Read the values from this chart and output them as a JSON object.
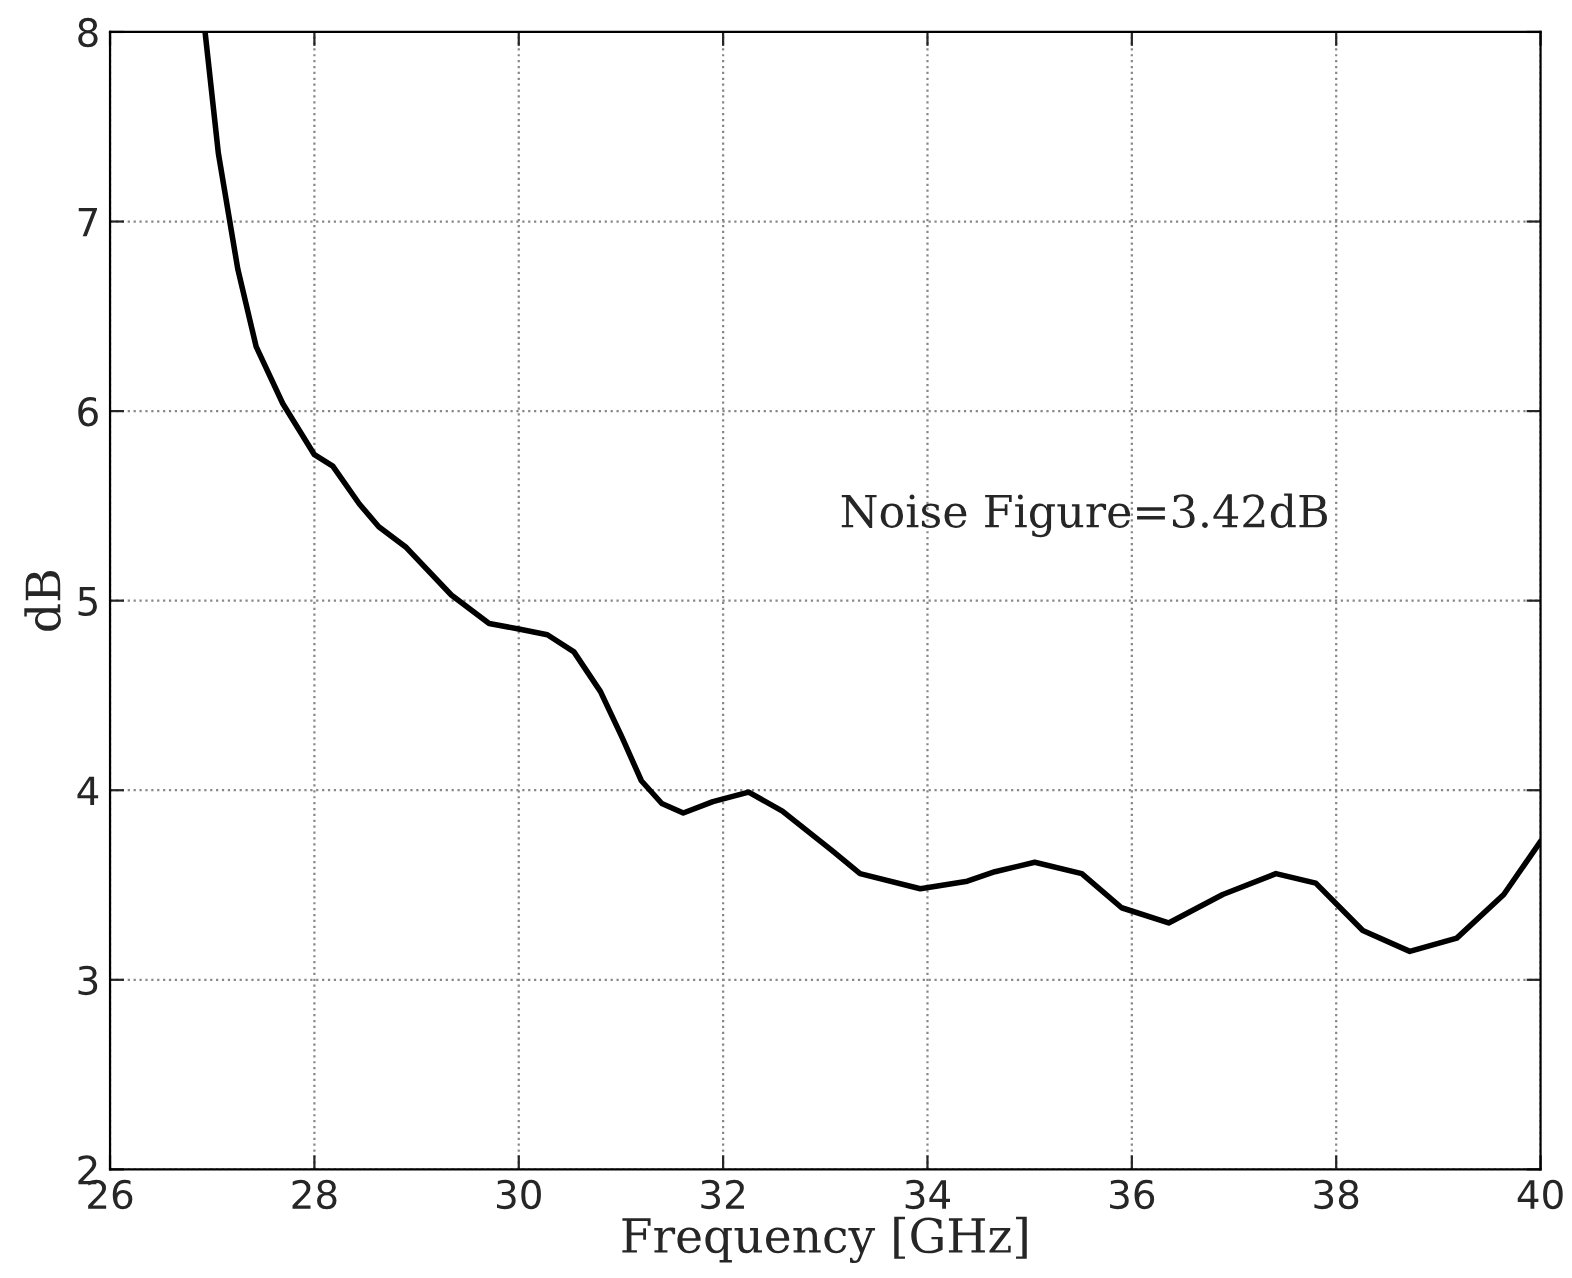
{
  "chart_data": {
    "type": "line",
    "xlabel": "Frequency [GHz]",
    "ylabel": "dB",
    "annotations": [
      "Noise Figure=3.42dB"
    ],
    "series": [
      {
        "color": "#000000",
        "x": [
          26.93,
          27.06,
          27.25,
          27.43,
          27.69,
          28.0,
          28.18,
          28.44,
          28.63,
          28.9,
          29.34,
          29.71,
          30.0,
          30.28,
          30.54,
          30.8,
          31.01,
          31.2,
          31.4,
          31.61,
          31.9,
          32.25,
          32.58,
          33.07,
          33.34,
          33.93,
          34.39,
          34.66,
          35.05,
          35.51,
          35.9,
          36.36,
          36.89,
          37.41,
          37.8,
          38.26,
          38.72,
          39.18,
          39.64,
          40.0
        ],
        "values": [
          8,
          7.36,
          6.75,
          6.34,
          6.04,
          5.77,
          5.71,
          5.51,
          5.39,
          5.28,
          5.03,
          4.88,
          4.85,
          4.82,
          4.73,
          4.52,
          4.28,
          4.05,
          3.93,
          3.88,
          3.94,
          3.99,
          3.89,
          3.68,
          3.56,
          3.48,
          3.52,
          3.57,
          3.62,
          3.56,
          3.38,
          3.3,
          3.45,
          3.56,
          3.51,
          3.26,
          3.15,
          3.22,
          3.45,
          3.73
        ]
      }
    ],
    "xlim": [
      26,
      40
    ],
    "xticks": [
      26,
      28,
      30,
      32,
      34,
      36,
      38,
      40
    ],
    "ylim": [
      2,
      8
    ],
    "yticks": [
      2,
      3,
      4,
      5,
      6,
      7,
      8
    ],
    "grid": true,
    "marker": "none",
    "line_style": "solid"
  }
}
